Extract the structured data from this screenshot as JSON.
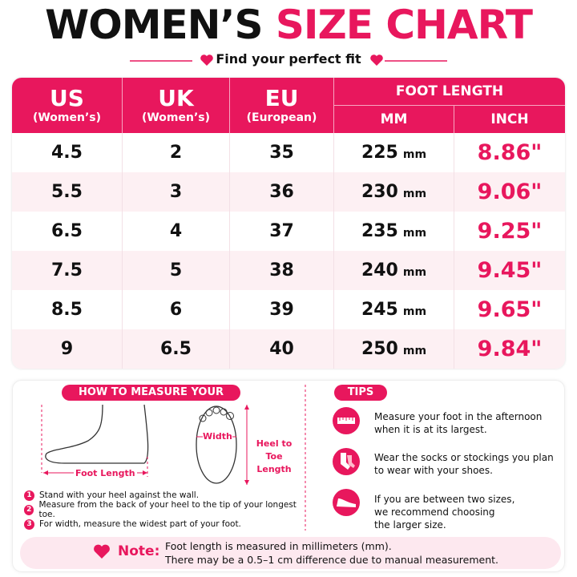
{
  "header": {
    "title_dark": "WOMEN’S",
    "title_accent": "SIZE CHART",
    "subtitle": "Find your perfect fit"
  },
  "table": {
    "headers": {
      "us": "US",
      "us_sub": "(Women’s)",
      "uk": "UK",
      "uk_sub": "(Women’s)",
      "eu": "EU",
      "eu_sub": "(European)",
      "foot_length": "FOOT LENGTH",
      "mm": "MM",
      "inch": "INCH"
    },
    "mm_unit": "mm",
    "rows": [
      [
        "4.5",
        "2",
        "35",
        "225",
        "8.86\""
      ],
      [
        "5.5",
        "3",
        "36",
        "230",
        "9.06\""
      ],
      [
        "6.5",
        "4",
        "37",
        "235",
        "9.25\""
      ],
      [
        "7.5",
        "5",
        "38",
        "240",
        "9.45\""
      ],
      [
        "8.5",
        "6",
        "39",
        "245",
        "9.65\""
      ],
      [
        "9",
        "6.5",
        "40",
        "250",
        "9.84\""
      ]
    ]
  },
  "measure": {
    "heading": "HOW TO MEASURE YOUR FOOT",
    "foot_length_label": "Foot Length",
    "width_label": "Width",
    "heel_to_toe_label": [
      "Heel to Toe",
      "Length"
    ],
    "steps": [
      {
        "number": "1",
        "text": "Stand with your heel against the wall."
      },
      {
        "number": "2",
        "text": "Measure from the back of your heel to the tip of your longest toe."
      },
      {
        "number": "3",
        "text": "For width, measure the widest part of your foot."
      }
    ]
  },
  "tips": {
    "heading": "TIPS",
    "items": [
      [
        "Measure your foot in the afternoon",
        "when it is at its largest."
      ],
      [
        "Wear the socks or stockings you plan",
        "to wear with your shoes."
      ],
      [
        "If you are between two sizes,",
        "we recommend choosing",
        "the larger size."
      ]
    ]
  },
  "note": {
    "label": "Note:",
    "lines": [
      "Foot length is measured in millimeters (mm).",
      "There may be a 0.5–1 cm difference due to manual measurement."
    ]
  }
}
